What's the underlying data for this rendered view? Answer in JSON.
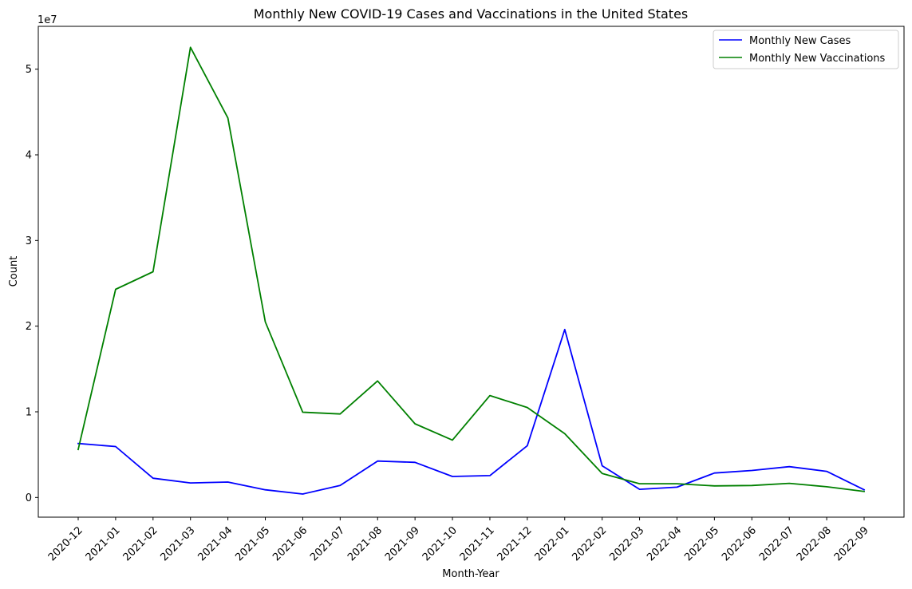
{
  "chart_data": {
    "type": "line",
    "title": "Monthly New COVID-19 Cases and Vaccinations in the United States",
    "xlabel": "Month-Year",
    "ylabel": "Count",
    "y_offset_label": "1e7",
    "y_scale_factor": 10000000,
    "ylim": [
      -2300000,
      55000000
    ],
    "yticks": [
      0,
      10000000,
      20000000,
      30000000,
      40000000,
      50000000
    ],
    "ytick_labels": [
      "0",
      "1",
      "2",
      "3",
      "4",
      "5"
    ],
    "grid": false,
    "legend_placement": "top-right",
    "categories": [
      "2020-12",
      "2021-01",
      "2021-02",
      "2021-03",
      "2021-04",
      "2021-05",
      "2021-06",
      "2021-07",
      "2021-08",
      "2021-09",
      "2021-10",
      "2021-11",
      "2021-12",
      "2022-01",
      "2022-02",
      "2022-03",
      "2022-04",
      "2022-05",
      "2022-06",
      "2022-07",
      "2022-08",
      "2022-09"
    ],
    "series": [
      {
        "name": "Monthly New Cases",
        "color": "#0000ff",
        "values": [
          6300000,
          5950000,
          2250000,
          1700000,
          1800000,
          900000,
          400000,
          1400000,
          4250000,
          4100000,
          2450000,
          2550000,
          6050000,
          19600000,
          3700000,
          950000,
          1200000,
          2850000,
          3150000,
          3600000,
          3050000,
          900000
        ]
      },
      {
        "name": "Monthly New Vaccinations",
        "color": "#008000",
        "values": [
          5600000,
          24300000,
          26350000,
          52550000,
          44300000,
          20500000,
          9950000,
          9750000,
          13600000,
          8600000,
          6700000,
          11900000,
          10500000,
          7450000,
          2800000,
          1600000,
          1600000,
          1350000,
          1400000,
          1650000,
          1250000,
          700000
        ]
      }
    ]
  }
}
